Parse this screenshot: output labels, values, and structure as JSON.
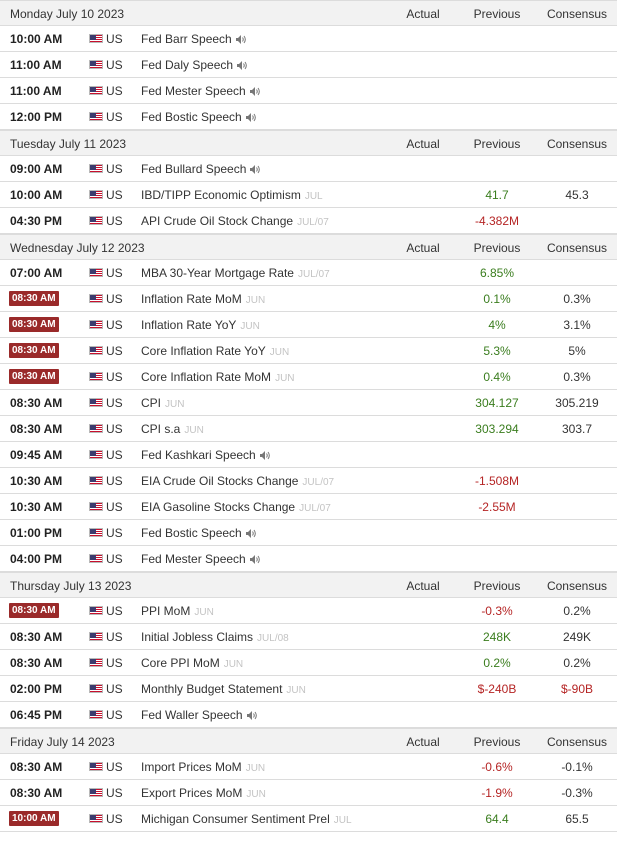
{
  "columns": {
    "actual": "Actual",
    "previous": "Previous",
    "consensus": "Consensus"
  },
  "colors": {
    "highlight_time_bg": "#9a2a2a",
    "previous_up": "#3a7d1e",
    "previous_down": "#b52424",
    "ref_gray": "#c3c3c3"
  },
  "days": [
    {
      "date": "Monday July 10 2023",
      "events": [
        {
          "time": "10:00 AM",
          "highlight": false,
          "country": "US",
          "name": "Fed Barr Speech",
          "ref": "",
          "speech": true,
          "actual": "",
          "previous": "",
          "previous_dir": "",
          "consensus": ""
        },
        {
          "time": "11:00 AM",
          "highlight": false,
          "country": "US",
          "name": "Fed Daly Speech",
          "ref": "",
          "speech": true,
          "actual": "",
          "previous": "",
          "previous_dir": "",
          "consensus": ""
        },
        {
          "time": "11:00 AM",
          "highlight": false,
          "country": "US",
          "name": "Fed Mester Speech",
          "ref": "",
          "speech": true,
          "actual": "",
          "previous": "",
          "previous_dir": "",
          "consensus": ""
        },
        {
          "time": "12:00 PM",
          "highlight": false,
          "country": "US",
          "name": "Fed Bostic Speech",
          "ref": "",
          "speech": true,
          "actual": "",
          "previous": "",
          "previous_dir": "",
          "consensus": ""
        }
      ]
    },
    {
      "date": "Tuesday July 11 2023",
      "events": [
        {
          "time": "09:00 AM",
          "highlight": false,
          "country": "US",
          "name": "Fed Bullard Speech",
          "ref": "",
          "speech": true,
          "actual": "",
          "previous": "",
          "previous_dir": "",
          "consensus": ""
        },
        {
          "time": "10:00 AM",
          "highlight": false,
          "country": "US",
          "name": "IBD/TIPP Economic Optimism",
          "ref": "JUL",
          "speech": false,
          "actual": "",
          "previous": "41.7",
          "previous_dir": "up",
          "consensus": "45.3"
        },
        {
          "time": "04:30 PM",
          "highlight": false,
          "country": "US",
          "name": "API Crude Oil Stock Change",
          "ref": "JUL/07",
          "speech": false,
          "actual": "",
          "previous": "-4.382M",
          "previous_dir": "down",
          "consensus": ""
        }
      ]
    },
    {
      "date": "Wednesday July 12 2023",
      "events": [
        {
          "time": "07:00 AM",
          "highlight": false,
          "country": "US",
          "name": "MBA 30-Year Mortgage Rate",
          "ref": "JUL/07",
          "speech": false,
          "actual": "",
          "previous": "6.85%",
          "previous_dir": "up",
          "consensus": ""
        },
        {
          "time": "08:30 AM",
          "highlight": true,
          "country": "US",
          "name": "Inflation Rate MoM",
          "ref": "JUN",
          "speech": false,
          "actual": "",
          "previous": "0.1%",
          "previous_dir": "up",
          "consensus": "0.3%"
        },
        {
          "time": "08:30 AM",
          "highlight": true,
          "country": "US",
          "name": "Inflation Rate YoY",
          "ref": "JUN",
          "speech": false,
          "actual": "",
          "previous": "4%",
          "previous_dir": "up",
          "consensus": "3.1%"
        },
        {
          "time": "08:30 AM",
          "highlight": true,
          "country": "US",
          "name": "Core Inflation Rate YoY",
          "ref": "JUN",
          "speech": false,
          "actual": "",
          "previous": "5.3%",
          "previous_dir": "up",
          "consensus": "5%"
        },
        {
          "time": "08:30 AM",
          "highlight": true,
          "country": "US",
          "name": "Core Inflation Rate MoM",
          "ref": "JUN",
          "speech": false,
          "actual": "",
          "previous": "0.4%",
          "previous_dir": "up",
          "consensus": "0.3%"
        },
        {
          "time": "08:30 AM",
          "highlight": false,
          "country": "US",
          "name": "CPI",
          "ref": "JUN",
          "speech": false,
          "actual": "",
          "previous": "304.127",
          "previous_dir": "up",
          "consensus": "305.219"
        },
        {
          "time": "08:30 AM",
          "highlight": false,
          "country": "US",
          "name": "CPI s.a",
          "ref": "JUN",
          "speech": false,
          "actual": "",
          "previous": "303.294",
          "previous_dir": "up",
          "consensus": "303.7"
        },
        {
          "time": "09:45 AM",
          "highlight": false,
          "country": "US",
          "name": "Fed Kashkari Speech",
          "ref": "",
          "speech": true,
          "actual": "",
          "previous": "",
          "previous_dir": "",
          "consensus": ""
        },
        {
          "time": "10:30 AM",
          "highlight": false,
          "country": "US",
          "name": "EIA Crude Oil Stocks Change",
          "ref": "JUL/07",
          "speech": false,
          "actual": "",
          "previous": "-1.508M",
          "previous_dir": "down",
          "consensus": ""
        },
        {
          "time": "10:30 AM",
          "highlight": false,
          "country": "US",
          "name": "EIA Gasoline Stocks Change",
          "ref": "JUL/07",
          "speech": false,
          "actual": "",
          "previous": "-2.55M",
          "previous_dir": "down",
          "consensus": ""
        },
        {
          "time": "01:00 PM",
          "highlight": false,
          "country": "US",
          "name": "Fed Bostic Speech",
          "ref": "",
          "speech": true,
          "actual": "",
          "previous": "",
          "previous_dir": "",
          "consensus": ""
        },
        {
          "time": "04:00 PM",
          "highlight": false,
          "country": "US",
          "name": "Fed Mester Speech",
          "ref": "",
          "speech": true,
          "actual": "",
          "previous": "",
          "previous_dir": "",
          "consensus": ""
        }
      ]
    },
    {
      "date": "Thursday July 13 2023",
      "events": [
        {
          "time": "08:30 AM",
          "highlight": true,
          "country": "US",
          "name": "PPI MoM",
          "ref": "JUN",
          "speech": false,
          "actual": "",
          "previous": "-0.3%",
          "previous_dir": "down",
          "consensus": "0.2%"
        },
        {
          "time": "08:30 AM",
          "highlight": false,
          "country": "US",
          "name": "Initial Jobless Claims",
          "ref": "JUL/08",
          "speech": false,
          "actual": "",
          "previous": "248K",
          "previous_dir": "up",
          "consensus": "249K"
        },
        {
          "time": "08:30 AM",
          "highlight": false,
          "country": "US",
          "name": "Core PPI MoM",
          "ref": "JUN",
          "speech": false,
          "actual": "",
          "previous": "0.2%",
          "previous_dir": "up",
          "consensus": "0.2%"
        },
        {
          "time": "02:00 PM",
          "highlight": false,
          "country": "US",
          "name": "Monthly Budget Statement",
          "ref": "JUN",
          "speech": false,
          "actual": "",
          "previous": "$-240B",
          "previous_dir": "down",
          "consensus": "$-90B",
          "consensus_dir": "down"
        },
        {
          "time": "06:45 PM",
          "highlight": false,
          "country": "US",
          "name": "Fed Waller Speech",
          "ref": "",
          "speech": true,
          "actual": "",
          "previous": "",
          "previous_dir": "",
          "consensus": ""
        }
      ]
    },
    {
      "date": "Friday July 14 2023",
      "events": [
        {
          "time": "08:30 AM",
          "highlight": false,
          "country": "US",
          "name": "Import Prices MoM",
          "ref": "JUN",
          "speech": false,
          "actual": "",
          "previous": "-0.6%",
          "previous_dir": "down",
          "consensus": "-0.1%"
        },
        {
          "time": "08:30 AM",
          "highlight": false,
          "country": "US",
          "name": "Export Prices MoM",
          "ref": "JUN",
          "speech": false,
          "actual": "",
          "previous": "-1.9%",
          "previous_dir": "down",
          "consensus": "-0.3%"
        },
        {
          "time": "10:00 AM",
          "highlight": true,
          "country": "US",
          "name": "Michigan Consumer Sentiment Prel",
          "ref": "JUL",
          "speech": false,
          "actual": "",
          "previous": "64.4",
          "previous_dir": "up",
          "consensus": "65.5"
        }
      ]
    }
  ]
}
